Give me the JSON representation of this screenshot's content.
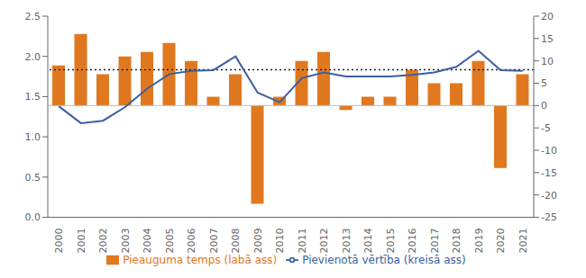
{
  "chart_data": {
    "type": "bar",
    "categories": [
      "2000",
      "2001",
      "2002",
      "2003",
      "2004",
      "2005",
      "2006",
      "2007",
      "2008",
      "2009",
      "2010",
      "2011",
      "2012",
      "2013",
      "2014",
      "2015",
      "2016",
      "2017",
      "2018",
      "2019",
      "2020",
      "2021"
    ],
    "series": [
      {
        "name": "Pieauguma temps (labā ass)",
        "type": "bar",
        "axis": "y2",
        "color": "#E07820",
        "values": [
          9,
          16,
          7,
          11,
          12,
          14,
          10,
          2,
          7,
          -22,
          2,
          10,
          12,
          -1,
          2,
          2,
          8,
          5,
          5,
          10,
          -14,
          7
        ]
      },
      {
        "name": "Pievienotā vērtība (kreisā ass)",
        "type": "line",
        "axis": "y",
        "color": "#3A5FA0",
        "values": [
          1.38,
          1.17,
          1.2,
          1.37,
          1.6,
          1.78,
          1.82,
          1.83,
          2.0,
          1.55,
          1.43,
          1.73,
          1.8,
          1.75,
          1.75,
          1.75,
          1.77,
          1.8,
          1.87,
          2.07,
          1.83,
          1.82
        ]
      }
    ],
    "ylim": [
      0,
      2.5
    ],
    "yticks": [
      {
        "value": 0,
        "label": "0.0"
      },
      0.5,
      {
        "value": 1,
        "label": "1.0"
      },
      1.5,
      {
        "value": 2,
        "label": "2.0"
      },
      2.5
    ],
    "y2lim": [
      -25,
      20
    ],
    "y2ticks": [
      -25,
      -20,
      -15,
      -10,
      -5,
      0,
      5,
      10,
      15,
      20
    ],
    "hlines": [
      {
        "value": 8,
        "axis": "y2",
        "color": "#222222",
        "line_style": "dotted"
      },
      {
        "value": 0,
        "axis": "y",
        "color": "#bbbbbb"
      },
      {
        "value": 0,
        "axis": "y2",
        "color": "#bbbbbb"
      }
    ],
    "legend": "bottom",
    "grid": false
  }
}
